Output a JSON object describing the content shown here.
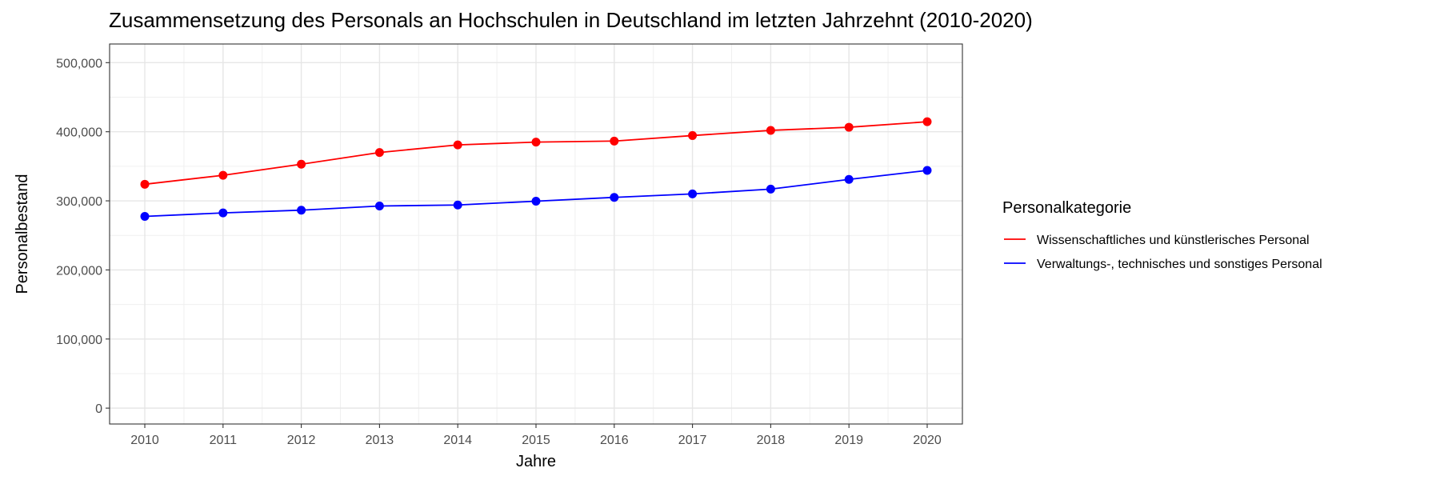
{
  "chart_data": {
    "type": "line",
    "title": "Zusammensetzung des Personals an Hochschulen in Deutschland im letzten Jahrzehnt (2010-2020)",
    "xlabel": "Jahre",
    "ylabel": "Personalbestand",
    "x": [
      2010,
      2011,
      2012,
      2013,
      2014,
      2015,
      2016,
      2017,
      2018,
      2019,
      2020
    ],
    "x_tick_labels": [
      "2010",
      "2011",
      "2012",
      "2013",
      "2014",
      "2015",
      "2016",
      "2017",
      "2018",
      "2019",
      "2020"
    ],
    "xlim": [
      2009.55,
      2020.45
    ],
    "ylim": [
      -23000,
      527000
    ],
    "y_ticks": [
      0,
      100000,
      200000,
      300000,
      400000,
      500000
    ],
    "y_tick_labels": [
      "0",
      "100,000",
      "200,000",
      "300,000",
      "400,000",
      "500,000"
    ],
    "grid": true,
    "legend": {
      "title": "Personalkategorie",
      "position": "right"
    },
    "series": [
      {
        "name": "Wissenschaftliches und künstlerisches Personal",
        "color": "#ff0000",
        "values": [
          324000,
          337000,
          353000,
          370000,
          381000,
          385000,
          386500,
          394500,
          402000,
          406500,
          414500
        ]
      },
      {
        "name": "Verwaltungs-, technisches und sonstiges Personal",
        "color": "#0000ff",
        "values": [
          277500,
          282500,
          286500,
          292500,
          294000,
          299500,
          305000,
          310000,
          317000,
          331000,
          344000
        ]
      }
    ]
  }
}
